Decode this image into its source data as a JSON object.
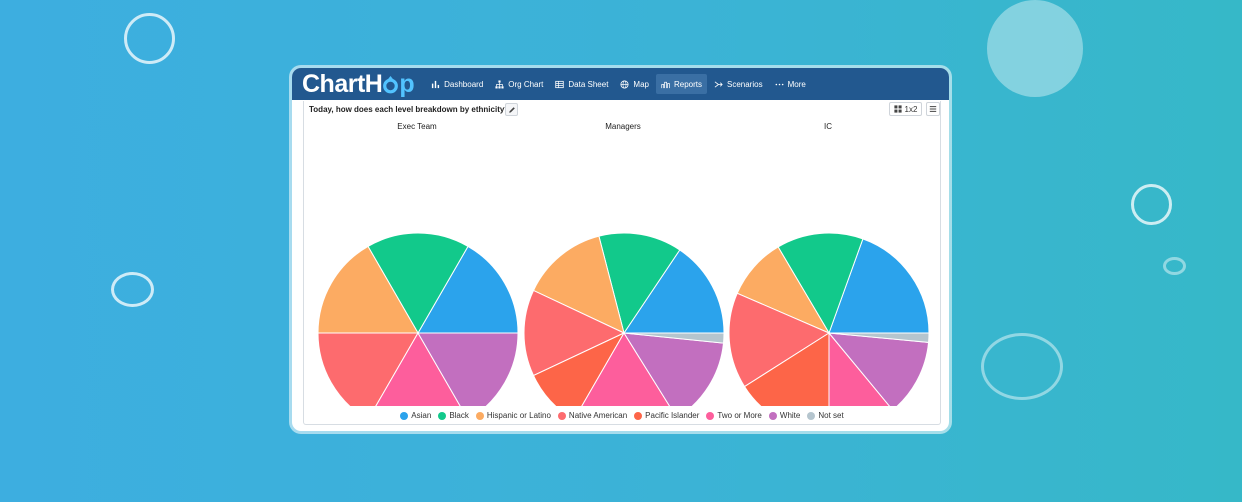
{
  "app": {
    "logo_part1": "ChartH",
    "logo_part2": "p"
  },
  "nav": {
    "items": [
      {
        "label": "Dashboard",
        "icon": "bar-chart-icon",
        "active": false
      },
      {
        "label": "Org Chart",
        "icon": "org-chart-icon",
        "active": false
      },
      {
        "label": "Data Sheet",
        "icon": "table-icon",
        "active": false
      },
      {
        "label": "Map",
        "icon": "globe-icon",
        "active": false
      },
      {
        "label": "Reports",
        "icon": "reports-icon",
        "active": true
      },
      {
        "label": "Scenarios",
        "icon": "scenarios-icon",
        "active": false
      },
      {
        "label": "More",
        "icon": "more-dots-icon",
        "active": false
      }
    ]
  },
  "report": {
    "title": "Today, how does each level breakdown by ethnicity?",
    "layout_label": "1x2"
  },
  "colors": {
    "Asian": "#2ba3ec",
    "Black": "#12c98b",
    "Hispanic or Latino": "#fcab62",
    "Native American": "#fd6b6e",
    "Pacific Islander": "#fd6548",
    "Two or More": "#fd5e9c",
    "White": "#c26fbf",
    "Not set": "#b5c5ce"
  },
  "chart_data": [
    {
      "type": "pie",
      "title": "Exec Team",
      "labels": [
        "Asian",
        "Black",
        "Hispanic or Latino",
        "Native American",
        "Pacific Islander",
        "Two or More",
        "White",
        "Not set"
      ],
      "values": [
        1,
        1,
        1,
        1,
        0,
        1,
        1,
        0
      ]
    },
    {
      "type": "pie",
      "title": "Managers",
      "labels": [
        "Asian",
        "Black",
        "Hispanic or Latino",
        "Native American",
        "Pacific Islander",
        "Two or More",
        "White",
        "Not set"
      ],
      "values": [
        14.5,
        12.5,
        13,
        13,
        9,
        16,
        13.5,
        1.5
      ]
    },
    {
      "type": "pie",
      "title": "IC",
      "labels": [
        "Asian",
        "Black",
        "Hispanic or Latino",
        "Native American",
        "Pacific Islander",
        "Two or More",
        "White",
        "Not set"
      ],
      "values": [
        19.5,
        14,
        10,
        15.5,
        16,
        11,
        12.5,
        1.5
      ]
    }
  ],
  "legend": {
    "items": [
      "Asian",
      "Black",
      "Hispanic or Latino",
      "Native American",
      "Pacific Islander",
      "Two or More",
      "White",
      "Not set"
    ]
  }
}
